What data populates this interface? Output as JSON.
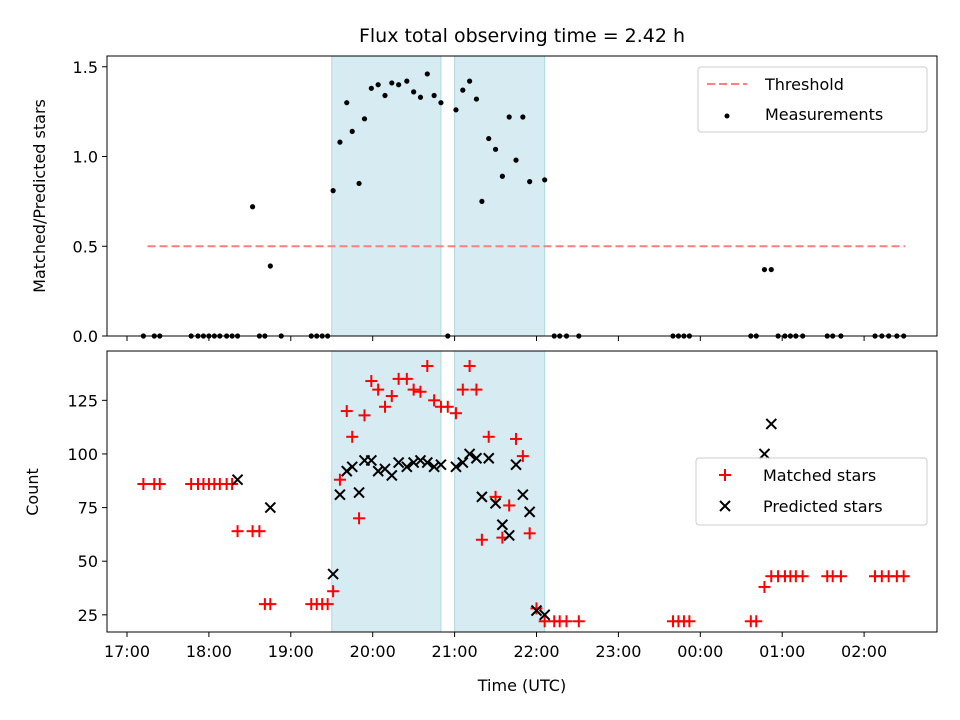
{
  "title": "Flux total observing time = 2.42 h",
  "chart_data": [
    {
      "type": "scatter",
      "panel": "top",
      "title": "Flux total observing time = 2.42 h",
      "ylabel": "Matched/Predicted stars",
      "xlabel": "",
      "ylim": [
        0,
        1.56
      ],
      "yticks": [
        0.0,
        0.5,
        1.0,
        1.5
      ],
      "ytick_labels": [
        "0.0",
        "0.5",
        "1.0",
        "1.5"
      ],
      "legend_position": "top-right",
      "shaded_regions": [
        [
          "19:30",
          "20:50"
        ],
        [
          "21:00",
          "22:06"
        ]
      ],
      "threshold": {
        "name": "Threshold",
        "value": 0.5,
        "x_start": "17:15",
        "x_end": "02:30",
        "color": "#ff7f7f",
        "style": "dashed"
      },
      "series": [
        {
          "name": "Measurements",
          "color": "#000000",
          "marker": "dot",
          "points": [
            [
              "17:12",
              0
            ],
            [
              "17:20",
              0
            ],
            [
              "17:24",
              0
            ],
            [
              "17:47",
              0
            ],
            [
              "17:52",
              0
            ],
            [
              "17:56",
              0
            ],
            [
              "18:00",
              0
            ],
            [
              "18:04",
              0
            ],
            [
              "18:08",
              0
            ],
            [
              "18:13",
              0
            ],
            [
              "18:17",
              0
            ],
            [
              "18:21",
              0
            ],
            [
              "18:32",
              0.72
            ],
            [
              "18:37",
              0
            ],
            [
              "18:41",
              0
            ],
            [
              "18:45",
              0.39
            ],
            [
              "18:53",
              0
            ],
            [
              "19:15",
              0
            ],
            [
              "19:19",
              0
            ],
            [
              "19:23",
              0
            ],
            [
              "19:27",
              0
            ],
            [
              "19:31",
              0.81
            ],
            [
              "19:36",
              1.08
            ],
            [
              "19:41",
              1.3
            ],
            [
              "19:45",
              1.14
            ],
            [
              "19:50",
              0.85
            ],
            [
              "19:54",
              1.21
            ],
            [
              "19:59",
              1.38
            ],
            [
              "20:04",
              1.4
            ],
            [
              "20:09",
              1.34
            ],
            [
              "20:14",
              1.41
            ],
            [
              "20:19",
              1.4
            ],
            [
              "20:25",
              1.42
            ],
            [
              "20:30",
              1.36
            ],
            [
              "20:35",
              1.33
            ],
            [
              "20:40",
              1.46
            ],
            [
              "20:45",
              1.34
            ],
            [
              "20:50",
              1.3
            ],
            [
              "20:55",
              0
            ],
            [
              "21:01",
              1.26
            ],
            [
              "21:06",
              1.37
            ],
            [
              "21:11",
              1.42
            ],
            [
              "21:16",
              1.32
            ],
            [
              "21:20",
              0.75
            ],
            [
              "21:25",
              1.1
            ],
            [
              "21:30",
              1.04
            ],
            [
              "21:35",
              0.89
            ],
            [
              "21:40",
              1.22
            ],
            [
              "21:45",
              0.98
            ],
            [
              "21:50",
              1.22
            ],
            [
              "21:55",
              0.86
            ],
            [
              "22:06",
              0.87
            ],
            [
              "22:13",
              0
            ],
            [
              "22:17",
              0
            ],
            [
              "22:22",
              0
            ],
            [
              "22:31",
              0
            ],
            [
              "23:40",
              0
            ],
            [
              "23:44",
              0
            ],
            [
              "23:48",
              0
            ],
            [
              "23:52",
              0
            ],
            [
              "00:37",
              0
            ],
            [
              "00:41",
              0
            ],
            [
              "00:47",
              0.37
            ],
            [
              "00:52",
              0.37
            ],
            [
              "00:57",
              0
            ],
            [
              "01:02",
              0
            ],
            [
              "01:06",
              0
            ],
            [
              "01:10",
              0
            ],
            [
              "01:15",
              0
            ],
            [
              "01:33",
              0
            ],
            [
              "01:37",
              0
            ],
            [
              "01:43",
              0
            ],
            [
              "02:08",
              0
            ],
            [
              "02:13",
              0
            ],
            [
              "02:18",
              0
            ],
            [
              "02:24",
              0
            ],
            [
              "02:29",
              0
            ]
          ]
        }
      ]
    },
    {
      "type": "scatter",
      "panel": "bottom",
      "ylabel": "Count",
      "xlabel": "Time (UTC)",
      "ylim": [
        17,
        148
      ],
      "yticks": [
        25,
        50,
        75,
        100,
        125
      ],
      "ytick_labels": [
        "25",
        "50",
        "75",
        "100",
        "125"
      ],
      "xticks": [
        "17:00",
        "18:00",
        "19:00",
        "20:00",
        "21:00",
        "22:00",
        "23:00",
        "00:00",
        "01:00",
        "02:00"
      ],
      "legend_position": "center-right",
      "shaded_regions": [
        [
          "19:30",
          "20:50"
        ],
        [
          "21:00",
          "22:06"
        ]
      ],
      "series": [
        {
          "name": "Matched stars",
          "color": "#ff0000",
          "marker": "plus",
          "points": [
            [
              "17:12",
              86
            ],
            [
              "17:20",
              86
            ],
            [
              "17:24",
              86
            ],
            [
              "17:47",
              86
            ],
            [
              "17:52",
              86
            ],
            [
              "17:56",
              86
            ],
            [
              "18:00",
              86
            ],
            [
              "18:04",
              86
            ],
            [
              "18:08",
              86
            ],
            [
              "18:13",
              86
            ],
            [
              "18:17",
              86
            ],
            [
              "18:21",
              64
            ],
            [
              "18:32",
              64
            ],
            [
              "18:37",
              64
            ],
            [
              "18:41",
              30
            ],
            [
              "18:45",
              30
            ],
            [
              "19:15",
              30
            ],
            [
              "19:19",
              30
            ],
            [
              "19:23",
              30
            ],
            [
              "19:27",
              30
            ],
            [
              "19:31",
              36
            ],
            [
              "19:36",
              88
            ],
            [
              "19:41",
              120
            ],
            [
              "19:45",
              108
            ],
            [
              "19:50",
              70
            ],
            [
              "19:54",
              118
            ],
            [
              "19:59",
              134
            ],
            [
              "20:04",
              130
            ],
            [
              "20:09",
              122
            ],
            [
              "20:14",
              127
            ],
            [
              "20:19",
              135
            ],
            [
              "20:25",
              135
            ],
            [
              "20:30",
              130
            ],
            [
              "20:35",
              129
            ],
            [
              "20:40",
              141
            ],
            [
              "20:45",
              125
            ],
            [
              "20:50",
              122
            ],
            [
              "20:55",
              122
            ],
            [
              "21:01",
              119
            ],
            [
              "21:06",
              130
            ],
            [
              "21:11",
              141
            ],
            [
              "21:16",
              130
            ],
            [
              "21:20",
              60
            ],
            [
              "21:25",
              108
            ],
            [
              "21:30",
              80
            ],
            [
              "21:35",
              61
            ],
            [
              "21:40",
              76
            ],
            [
              "21:45",
              107
            ],
            [
              "21:50",
              99
            ],
            [
              "21:55",
              63
            ],
            [
              "22:00",
              28
            ],
            [
              "22:06",
              22
            ],
            [
              "22:13",
              22
            ],
            [
              "22:17",
              22
            ],
            [
              "22:22",
              22
            ],
            [
              "22:31",
              22
            ],
            [
              "23:40",
              22
            ],
            [
              "23:44",
              22
            ],
            [
              "23:48",
              22
            ],
            [
              "23:52",
              22
            ],
            [
              "00:37",
              22
            ],
            [
              "00:41",
              22
            ],
            [
              "00:47",
              38
            ],
            [
              "00:52",
              43
            ],
            [
              "00:57",
              43
            ],
            [
              "01:02",
              43
            ],
            [
              "01:06",
              43
            ],
            [
              "01:10",
              43
            ],
            [
              "01:15",
              43
            ],
            [
              "01:33",
              43
            ],
            [
              "01:37",
              43
            ],
            [
              "01:43",
              43
            ],
            [
              "02:08",
              43
            ],
            [
              "02:13",
              43
            ],
            [
              "02:18",
              43
            ],
            [
              "02:24",
              43
            ],
            [
              "02:29",
              43
            ]
          ]
        },
        {
          "name": "Predicted stars",
          "color": "#000000",
          "marker": "x",
          "points": [
            [
              "18:21",
              88
            ],
            [
              "18:45",
              75
            ],
            [
              "19:31",
              44
            ],
            [
              "19:36",
              81
            ],
            [
              "19:41",
              92
            ],
            [
              "19:45",
              94
            ],
            [
              "19:50",
              82
            ],
            [
              "19:54",
              97
            ],
            [
              "19:59",
              97
            ],
            [
              "20:04",
              92
            ],
            [
              "20:09",
              93
            ],
            [
              "20:14",
              90
            ],
            [
              "20:19",
              96
            ],
            [
              "20:25",
              94
            ],
            [
              "20:30",
              96
            ],
            [
              "20:35",
              97
            ],
            [
              "20:40",
              96
            ],
            [
              "20:45",
              94
            ],
            [
              "20:50",
              95
            ],
            [
              "21:01",
              94
            ],
            [
              "21:06",
              96
            ],
            [
              "21:11",
              100
            ],
            [
              "21:16",
              98
            ],
            [
              "21:20",
              80
            ],
            [
              "21:25",
              98
            ],
            [
              "21:30",
              77
            ],
            [
              "21:35",
              67
            ],
            [
              "21:40",
              62
            ],
            [
              "21:45",
              95
            ],
            [
              "21:50",
              81
            ],
            [
              "21:55",
              73
            ],
            [
              "22:00",
              27
            ],
            [
              "22:06",
              25
            ],
            [
              "00:47",
              100
            ],
            [
              "00:52",
              114
            ]
          ]
        }
      ]
    }
  ]
}
